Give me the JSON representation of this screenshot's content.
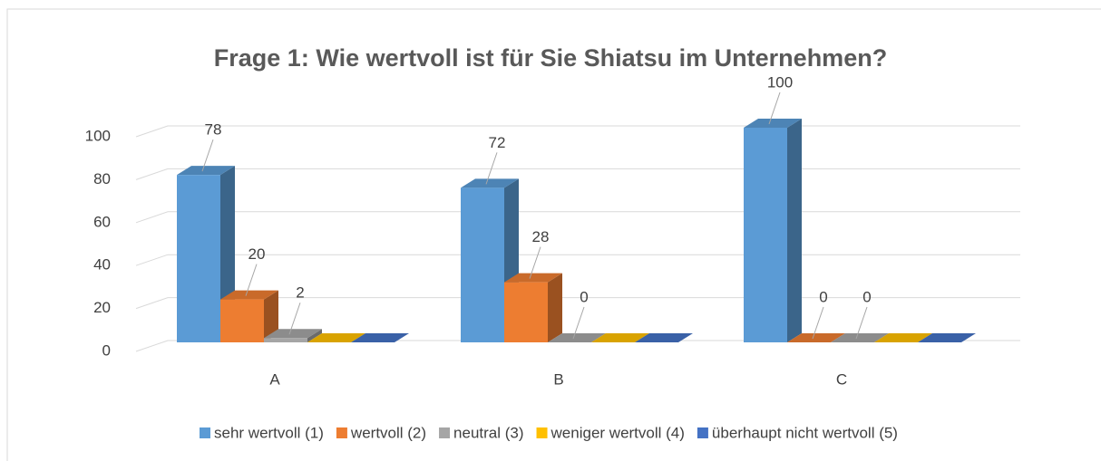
{
  "chart_data": {
    "type": "bar3d",
    "title": "Frage 1: Wie wertvoll ist für Sie Shiatsu im Unternehmen?",
    "categories": [
      "A",
      "B",
      "C"
    ],
    "series": [
      {
        "name": "sehr wertvoll (1)",
        "color": "#5b9bd5",
        "values": [
          78,
          72,
          100
        ],
        "data_labels": true
      },
      {
        "name": "wertvoll (2)",
        "color": "#ed7d31",
        "values": [
          20,
          28,
          0
        ],
        "data_labels": true
      },
      {
        "name": "neutral (3)",
        "color": "#a5a5a5",
        "values": [
          2,
          0,
          0
        ],
        "data_labels": true
      },
      {
        "name": "weniger wertvoll (4)",
        "color": "#ffc000",
        "values": [
          0,
          0,
          0
        ],
        "data_labels": false
      },
      {
        "name": "überhaupt nicht wertvoll (5)",
        "color": "#4472c4",
        "values": [
          0,
          0,
          0
        ],
        "data_labels": false
      }
    ],
    "ylim": [
      0,
      100
    ],
    "yticks": [
      0,
      20,
      40,
      60,
      80,
      100
    ],
    "grid": true,
    "legend": "bottom"
  }
}
